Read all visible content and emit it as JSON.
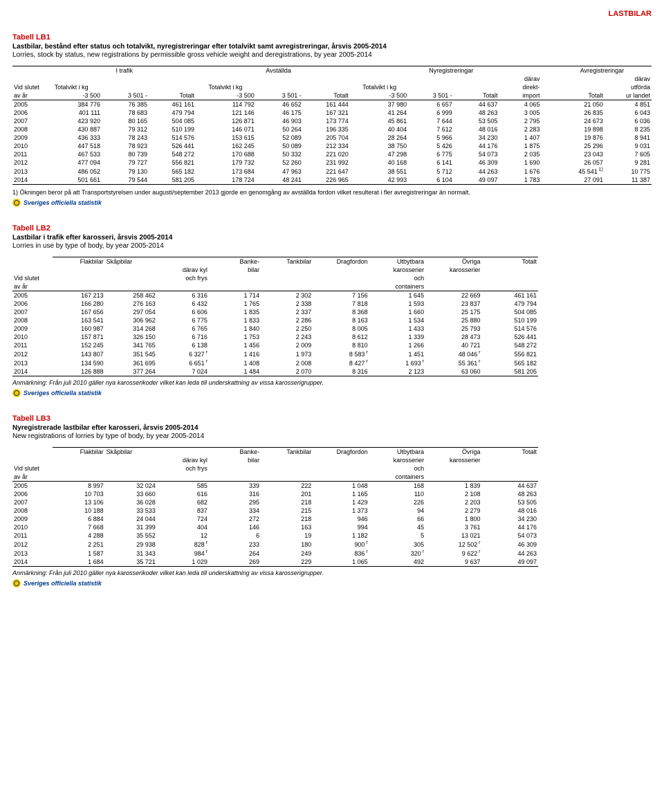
{
  "pageCorner": "LASTBILAR",
  "tables": {
    "lb1": {
      "title": "Tabell LB1",
      "sub_sv": "Lastbilar, bestånd efter status och totalvikt, nyregistreringar efter totalvikt samt avregistreringar, årsvis 2005-2014",
      "sub_en": "Lorries, stock by status, new registrations by permissible gross vehicle weight and deregistrations, by year 2005-2014",
      "groups": [
        "I trafik",
        "Avställda",
        "Nyregistreringar",
        "Avregistreringar"
      ],
      "row1_left": "Vid slutet",
      "row1_tvkg": "Totalvikt i kg",
      "row1_darav": "därav",
      "row2_left": "av år",
      "row2_direkt": "direkt-",
      "row2_utforda": "utförda",
      "row3_m3500": "-3 500",
      "row3_3501": "3 501 -",
      "row3_totalt": "Totalt",
      "row3_import": "import",
      "row3_urlandet": "ur landet",
      "rows": [
        [
          "2005",
          "384 776",
          "76 385",
          "461 161",
          "114 792",
          "46 652",
          "161 444",
          "37 980",
          "6 657",
          "44 637",
          "4 065",
          "21 050",
          "4 851"
        ],
        [
          "2006",
          "401 111",
          "78 683",
          "479 794",
          "121 146",
          "46 175",
          "167 321",
          "41 264",
          "6 999",
          "48 263",
          "3 005",
          "26 835",
          "6 043"
        ],
        [
          "2007",
          "423 920",
          "80 165",
          "504 085",
          "126 871",
          "46 903",
          "173 774",
          "45 861",
          "7 644",
          "53 505",
          "2 795",
          "24 673",
          "6 036"
        ],
        [
          "2008",
          "430 887",
          "79 312",
          "510 199",
          "146 071",
          "50 264",
          "196 335",
          "40 404",
          "7 612",
          "48 016",
          "2 283",
          "19 898",
          "8 235"
        ],
        [
          "2009",
          "436 333",
          "78 243",
          "514 576",
          "153 615",
          "52 089",
          "205 704",
          "28 264",
          "5 966",
          "34 230",
          "1 407",
          "19 876",
          "8 941"
        ],
        [
          "2010",
          "447 518",
          "78 923",
          "526 441",
          "162 245",
          "50 089",
          "212 334",
          "38 750",
          "5 426",
          "44 176",
          "1 875",
          "25 296",
          "9 031"
        ],
        [
          "2011",
          "467 533",
          "80 739",
          "548 272",
          "170 688",
          "50 332",
          "221 020",
          "47 298",
          "6 775",
          "54 073",
          "2 035",
          "23 043",
          "7 605"
        ],
        [
          "2012",
          "477 094",
          "79 727",
          "556 821",
          "179 732",
          "52 260",
          "231 992",
          "40 168",
          "6 141",
          "46 309",
          "1 690",
          "26 057",
          "9 281"
        ],
        [
          "2013",
          "486 052",
          "79 130",
          "565 182",
          "173 684",
          "47 963",
          "221 647",
          "38 551",
          "5 712",
          "44 263",
          "1 676",
          "45 541",
          "10 775"
        ],
        [
          "2014",
          "501 661",
          "79 544",
          "581 205",
          "178 724",
          "48 241",
          "226 965",
          "42 993",
          "6 104",
          "49 097",
          "1 783",
          "27 091",
          "11 387"
        ]
      ],
      "sup_2013": "1)",
      "footnote": "1) Ökningen beror på att Transportstyrelsen under augusti/september 2013 gjorde en genomgång av avställda fordon vilket resulterat i fler avregistreringar än normalt."
    },
    "lb2": {
      "title": "Tabell LB2",
      "sub_sv": "Lastbilar i trafik efter karosseri, årsvis 2005-2014",
      "sub_en": "Lorries in use by type of body, by year 2005-2014",
      "hdr1": [
        "Flakbilar",
        "Skåpbilar",
        "",
        "Banke-",
        "Tankbilar",
        "Dragfordon",
        "Utbytbara",
        "Övriga",
        "Totalt"
      ],
      "hdr2": [
        "",
        "",
        "därav kyl",
        "bilar",
        "",
        "",
        "karosserier",
        "karosserier",
        ""
      ],
      "hdr3_vid": "Vid slutet",
      "hdr3_ochfrys": "och frys",
      "hdr3_och": "och",
      "hdr4_avar": "av år",
      "hdr4_containers": "containers",
      "rows": [
        [
          "2005",
          "167 213",
          "258 462",
          "6 316",
          "1 714",
          "2 302",
          "7 156",
          "1 645",
          "22 669",
          "461 161"
        ],
        [
          "2006",
          "166 280",
          "276 163",
          "6 432",
          "1 765",
          "2 338",
          "7 818",
          "1 593",
          "23 837",
          "479 794"
        ],
        [
          "2007",
          "167 656",
          "297 054",
          "6 606",
          "1 835",
          "2 337",
          "8 368",
          "1 660",
          "25 175",
          "504 085"
        ],
        [
          "2008",
          "163 541",
          "306 962",
          "6 775",
          "1 833",
          "2 286",
          "8 163",
          "1 534",
          "25 880",
          "510 199"
        ],
        [
          "2009",
          "160 987",
          "314 268",
          "6 765",
          "1 840",
          "2 250",
          "8 005",
          "1 433",
          "25 793",
          "514 576"
        ],
        [
          "2010",
          "157 871",
          "326 150",
          "6 716",
          "1 753",
          "2 243",
          "8 612",
          "1 339",
          "28 473",
          "526 441"
        ],
        [
          "2011",
          "152 245",
          "341 765",
          "6 138",
          "1 456",
          "2 009",
          "8 810",
          "1 266",
          "40 721",
          "548 272"
        ],
        [
          "2012",
          "143 807",
          "351 545",
          "6 327",
          "1 416",
          "1 973",
          "8 583",
          "1 451",
          "48 046",
          "556 821"
        ],
        [
          "2013",
          "134 590",
          "361 695",
          "6 651",
          "1 408",
          "2 008",
          "8 427",
          "1 693",
          "55 361",
          "565 182"
        ],
        [
          "2014",
          "126 888",
          "377 264",
          "7 024",
          "1 484",
          "2 070",
          "8 316",
          "2 123",
          "63 060",
          "581 205"
        ]
      ],
      "r_sup": "r",
      "r_rows": {
        "2012": [
          3,
          6,
          8
        ],
        "2013": [
          3,
          6,
          7,
          8
        ]
      },
      "note_lbl": "Anmärkning",
      "note": ": Från juli 2010 gäller nya karosserikoder vilket kan leda till underskattning av vissa karosserigrupper."
    },
    "lb3": {
      "title": "Tabell LB3",
      "sub_sv": "Nyregistrerade lastbilar efter karosseri, årsvis 2005-2014",
      "sub_en": "New registrations of lorries by type of body, by year 2005-2014",
      "rows": [
        [
          "2005",
          "8 997",
          "32 024",
          "585",
          "339",
          "222",
          "1 048",
          "168",
          "1 839",
          "44 637"
        ],
        [
          "2006",
          "10 703",
          "33 660",
          "616",
          "316",
          "201",
          "1 165",
          "110",
          "2 108",
          "48 263"
        ],
        [
          "2007",
          "13 106",
          "36 028",
          "682",
          "295",
          "218",
          "1 429",
          "226",
          "2 203",
          "53 505"
        ],
        [
          "2008",
          "10 188",
          "33 533",
          "837",
          "334",
          "215",
          "1 373",
          "94",
          "2 279",
          "48 016"
        ],
        [
          "2009",
          "6 884",
          "24 044",
          "724",
          "272",
          "218",
          "946",
          "66",
          "1 800",
          "34 230"
        ],
        [
          "2010",
          "7 668",
          "31 399",
          "404",
          "146",
          "163",
          "994",
          "45",
          "3 761",
          "44 176"
        ],
        [
          "2011",
          "4 288",
          "35 552",
          "12",
          "6",
          "19",
          "1 182",
          "5",
          "13 021",
          "54 073"
        ],
        [
          "2012",
          "2 251",
          "29 938",
          "828",
          "233",
          "180",
          "900",
          "305",
          "12 502",
          "46 309"
        ],
        [
          "2013",
          "1 587",
          "31 343",
          "984",
          "264",
          "249",
          "836",
          "320",
          "9 622",
          "44 263"
        ],
        [
          "2014",
          "1 684",
          "35 721",
          "1 029",
          "269",
          "229",
          "1 065",
          "492",
          "9 637",
          "49 097"
        ]
      ],
      "r_rows": {
        "2012": [
          3,
          6,
          8
        ],
        "2013": [
          3,
          6,
          7,
          8
        ]
      },
      "note_lbl": "Anmärkning",
      "note": ": Från juli 2010 gäller nya karosserikoder vilket kan leda till underskattning av vissa karosserigrupper."
    }
  },
  "logo_text": "Sveriges officiella statistik"
}
